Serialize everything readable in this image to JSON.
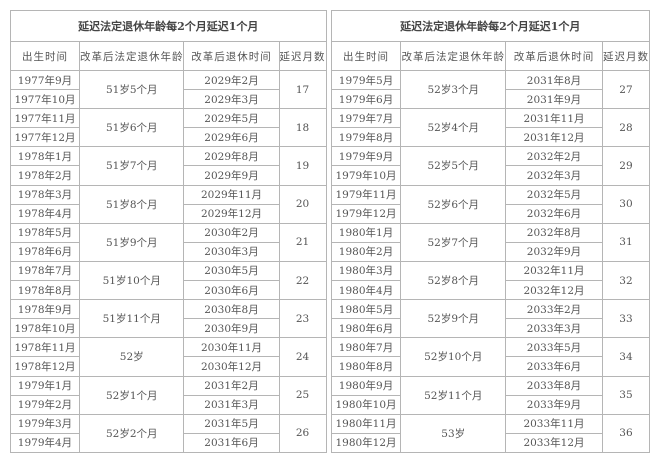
{
  "tables": [
    {
      "title": "延迟法定退休年龄每2个月延迟1个月",
      "headers": [
        "出生时间",
        "改革后法定退休年龄",
        "改革后退休时间",
        "延迟月数"
      ],
      "groups": [
        {
          "birth": [
            "1977年9月",
            "1977年10月"
          ],
          "age": "51岁5个月",
          "retire": [
            "2029年2月",
            "2029年3月"
          ],
          "delay": "17"
        },
        {
          "birth": [
            "1977年11月",
            "1977年12月"
          ],
          "age": "51岁6个月",
          "retire": [
            "2029年5月",
            "2029年6月"
          ],
          "delay": "18"
        },
        {
          "birth": [
            "1978年1月",
            "1978年2月"
          ],
          "age": "51岁7个月",
          "retire": [
            "2029年8月",
            "2029年9月"
          ],
          "delay": "19"
        },
        {
          "birth": [
            "1978年3月",
            "1978年4月"
          ],
          "age": "51岁8个月",
          "retire": [
            "2029年11月",
            "2029年12月"
          ],
          "delay": "20"
        },
        {
          "birth": [
            "1978年5月",
            "1978年6月"
          ],
          "age": "51岁9个月",
          "retire": [
            "2030年2月",
            "2030年3月"
          ],
          "delay": "21"
        },
        {
          "birth": [
            "1978年7月",
            "1978年8月"
          ],
          "age": "51岁10个月",
          "retire": [
            "2030年5月",
            "2030年6月"
          ],
          "delay": "22"
        },
        {
          "birth": [
            "1978年9月",
            "1978年10月"
          ],
          "age": "51岁11个月",
          "retire": [
            "2030年8月",
            "2030年9月"
          ],
          "delay": "23"
        },
        {
          "birth": [
            "1978年11月",
            "1978年12月"
          ],
          "age": "52岁",
          "retire": [
            "2030年11月",
            "2030年12月"
          ],
          "delay": "24"
        },
        {
          "birth": [
            "1979年1月",
            "1979年2月"
          ],
          "age": "52岁1个月",
          "retire": [
            "2031年2月",
            "2031年3月"
          ],
          "delay": "25"
        },
        {
          "birth": [
            "1979年3月",
            "1979年4月"
          ],
          "age": "52岁2个月",
          "retire": [
            "2031年5月",
            "2031年6月"
          ],
          "delay": "26"
        }
      ]
    },
    {
      "title": "延迟法定退休年龄每2个月延迟1个月",
      "headers": [
        "出生时间",
        "改革后法定退休年龄",
        "改革后退休时间",
        "延迟月数"
      ],
      "groups": [
        {
          "birth": [
            "1979年5月",
            "1979年6月"
          ],
          "age": "52岁3个月",
          "retire": [
            "2031年8月",
            "2031年9月"
          ],
          "delay": "27"
        },
        {
          "birth": [
            "1979年7月",
            "1979年8月"
          ],
          "age": "52岁4个月",
          "retire": [
            "2031年11月",
            "2031年12月"
          ],
          "delay": "28"
        },
        {
          "birth": [
            "1979年9月",
            "1979年10月"
          ],
          "age": "52岁5个月",
          "retire": [
            "2032年2月",
            "2032年3月"
          ],
          "delay": "29"
        },
        {
          "birth": [
            "1979年11月",
            "1979年12月"
          ],
          "age": "52岁6个月",
          "retire": [
            "2032年5月",
            "2032年6月"
          ],
          "delay": "30"
        },
        {
          "birth": [
            "1980年1月",
            "1980年2月"
          ],
          "age": "52岁7个月",
          "retire": [
            "2032年8月",
            "2032年9月"
          ],
          "delay": "31"
        },
        {
          "birth": [
            "1980年3月",
            "1980年4月"
          ],
          "age": "52岁8个月",
          "retire": [
            "2032年11月",
            "2032年12月"
          ],
          "delay": "32"
        },
        {
          "birth": [
            "1980年5月",
            "1980年6月"
          ],
          "age": "52岁9个月",
          "retire": [
            "2033年2月",
            "2033年3月"
          ],
          "delay": "33"
        },
        {
          "birth": [
            "1980年7月",
            "1980年8月"
          ],
          "age": "52岁10个月",
          "retire": [
            "2033年5月",
            "2033年6月"
          ],
          "delay": "34"
        },
        {
          "birth": [
            "1980年9月",
            "1980年10月"
          ],
          "age": "52岁11个月",
          "retire": [
            "2033年8月",
            "2033年9月"
          ],
          "delay": "35"
        },
        {
          "birth": [
            "1980年11月",
            "1980年12月"
          ],
          "age": "53岁",
          "retire": [
            "2033年11月",
            "2033年12月"
          ],
          "delay": "36"
        }
      ]
    }
  ]
}
